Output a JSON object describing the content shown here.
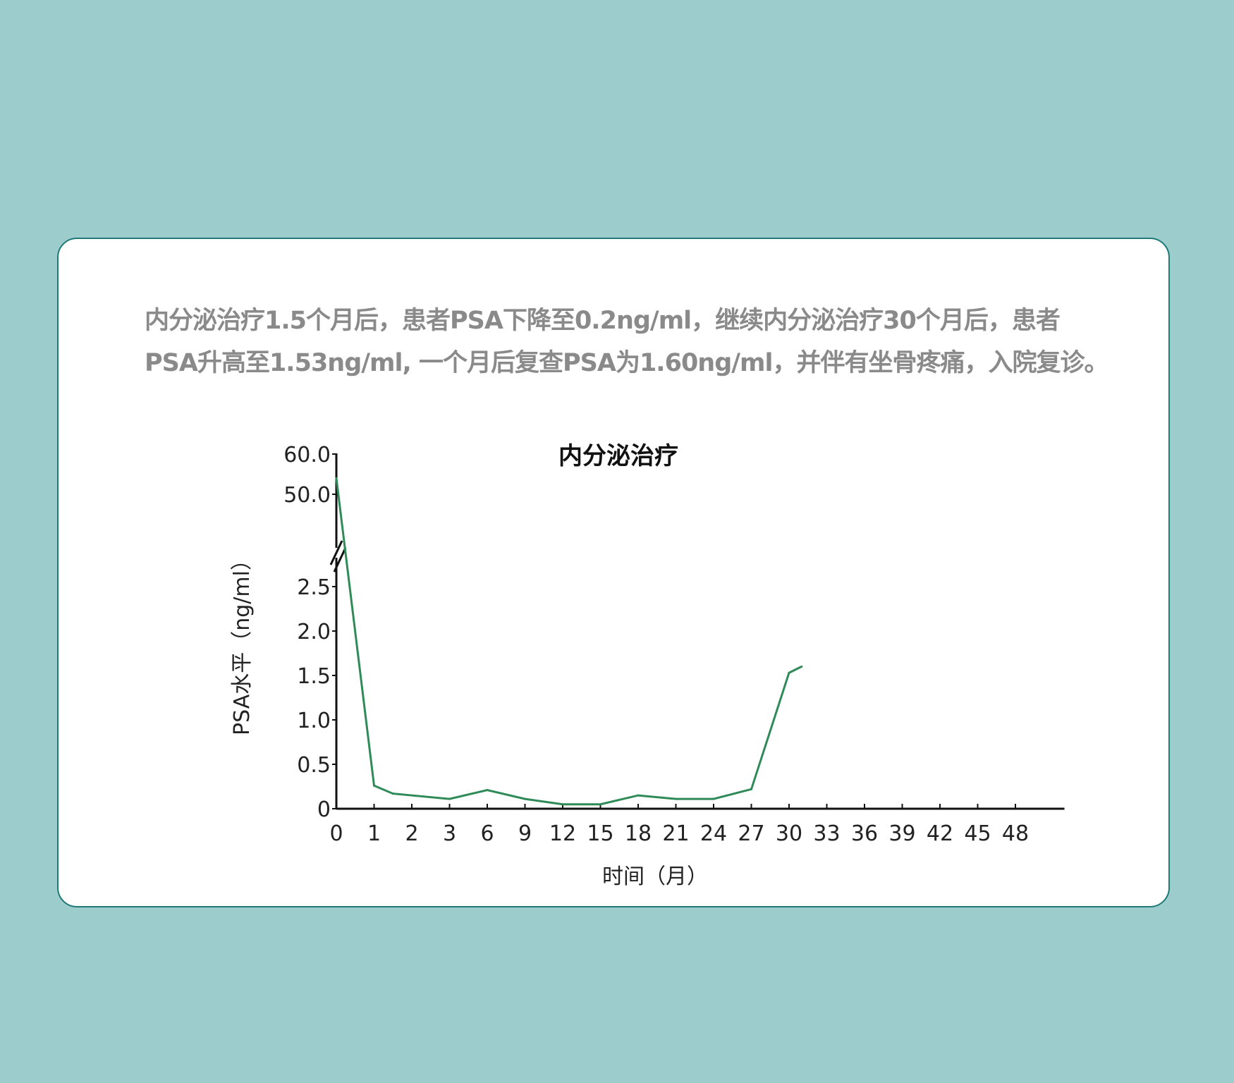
{
  "caption": {
    "line1": "内分泌治疗1.5个月后，患者PSA下降至0.2ng/ml，继续内分泌治疗30个月后，患者",
    "line2": "PSA升高至1.53ng/ml, 一个月后复查PSA为1.60ng/ml，并伴有坐骨疼痛，入院复诊。"
  },
  "chart_data": {
    "type": "line",
    "title": "内分泌治疗",
    "xlabel": "时间（月）",
    "ylabel": "PSA水平（ng/ml）",
    "categories": [
      "0",
      "1",
      "2",
      "3",
      "6",
      "9",
      "12",
      "15",
      "18",
      "21",
      "24",
      "27",
      "30",
      "33",
      "36",
      "39",
      "42",
      "45",
      "48"
    ],
    "y_ticks_lower": [
      "0",
      "0.5",
      "1.0",
      "1.5",
      "2.0",
      "2.5"
    ],
    "y_ticks_upper": [
      "50.0",
      "60.0"
    ],
    "y_axis_break": true,
    "series": [
      {
        "color": "#2e8b57",
        "points": [
          {
            "x": 0,
            "y": 54.0
          },
          {
            "x": 1,
            "y": 0.26
          },
          {
            "x": 1.5,
            "y": 0.17
          },
          {
            "x": 3,
            "y": 0.11
          },
          {
            "x": 6,
            "y": 0.21
          },
          {
            "x": 9,
            "y": 0.11
          },
          {
            "x": 12,
            "y": 0.05
          },
          {
            "x": 15,
            "y": 0.05
          },
          {
            "x": 18,
            "y": 0.15
          },
          {
            "x": 21,
            "y": 0.11
          },
          {
            "x": 24,
            "y": 0.11
          },
          {
            "x": 27,
            "y": 0.22
          },
          {
            "x": 30,
            "y": 1.53
          },
          {
            "x": 31,
            "y": 1.6
          }
        ]
      }
    ]
  }
}
